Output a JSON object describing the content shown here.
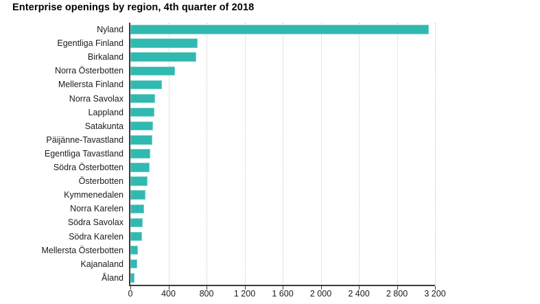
{
  "title": "Enterprise openings by region, 4th quarter of 2018",
  "colors": {
    "bar_fill": "#2fb9b1",
    "bar_edge": "#79d2cb",
    "axis": "#3a3a3a",
    "grid": "#c9c9c9",
    "text": "#1a1a1a",
    "background": "#ffffff"
  },
  "chart_data": {
    "type": "bar",
    "orientation": "horizontal",
    "title": "Enterprise openings by region, 4th quarter of 2018",
    "xlabel": "",
    "ylabel": "",
    "xlim": [
      0,
      3200
    ],
    "grid": "vertical-dotted",
    "legend": "none",
    "categories": [
      "Nyland",
      "Egentliga Finland",
      "Birkaland",
      "Norra Österbotten",
      "Mellersta Finland",
      "Norra Savolax",
      "Lappland",
      "Satakunta",
      "Päijänne-Tavastland",
      "Egentliga Tavastland",
      "Södra Österbotten",
      "Österbotten",
      "Kymmenedalen",
      "Norra Karelen",
      "Södra Savolax",
      "Södra Karelen",
      "Mellersta Österbotten",
      "Kajanaland",
      "Åland"
    ],
    "values": [
      3120,
      690,
      675,
      455,
      315,
      245,
      238,
      226,
      214,
      195,
      185,
      165,
      147,
      132,
      114,
      110,
      65,
      57,
      30
    ],
    "xticks": [
      0,
      400,
      800,
      1200,
      1600,
      2000,
      2400,
      2800,
      3200
    ],
    "xtick_labels": [
      "0",
      "400",
      "800",
      "1 200",
      "1 600",
      "2 000",
      "2 400",
      "2 800",
      "3 200"
    ]
  }
}
